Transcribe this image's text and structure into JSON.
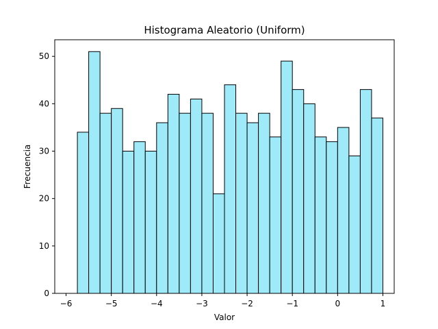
{
  "chart_data": {
    "type": "bar",
    "title": "Histograma Aleatorio (Uniform)",
    "xlabel": "Valor",
    "ylabel": "Frecuencia",
    "bins": {
      "start": -5.75,
      "width": 0.25
    },
    "values": [
      34,
      51,
      38,
      39,
      30,
      32,
      30,
      36,
      42,
      38,
      41,
      38,
      21,
      44,
      38,
      36,
      38,
      33,
      49,
      43,
      40,
      33,
      32,
      35,
      29,
      43,
      37
    ],
    "xlim": [
      -6.25,
      1.25
    ],
    "ylim": [
      0,
      53.5
    ],
    "xticks": [
      -6,
      -5,
      -4,
      -3,
      -2,
      -1,
      0,
      1
    ],
    "xtick_labels": [
      "−6",
      "−5",
      "−4",
      "−3",
      "−2",
      "−1",
      "0",
      "1"
    ],
    "yticks": [
      0,
      10,
      20,
      30,
      40,
      50
    ],
    "ytick_labels": [
      "0",
      "10",
      "20",
      "30",
      "40",
      "50"
    ],
    "bar_color": "#9feaf9",
    "edge_color": "#000000",
    "grid": false,
    "legend": "none"
  }
}
